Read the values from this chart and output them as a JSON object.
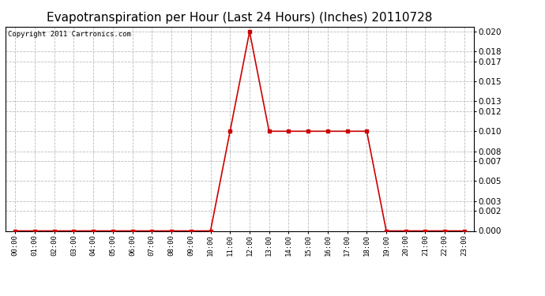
{
  "title": "Evapotranspiration per Hour (Last 24 Hours) (Inches) 20110728",
  "copyright": "Copyright 2011 Cartronics.com",
  "hours": [
    "00:00",
    "01:00",
    "02:00",
    "03:00",
    "04:00",
    "05:00",
    "06:00",
    "07:00",
    "08:00",
    "09:00",
    "10:00",
    "11:00",
    "12:00",
    "13:00",
    "14:00",
    "15:00",
    "16:00",
    "17:00",
    "18:00",
    "19:00",
    "20:00",
    "21:00",
    "22:00",
    "23:00"
  ],
  "values": [
    0.0,
    0.0,
    0.0,
    0.0,
    0.0,
    0.0,
    0.0,
    0.0,
    0.0,
    0.0,
    0.0,
    0.01,
    0.02,
    0.01,
    0.01,
    0.01,
    0.01,
    0.01,
    0.01,
    0.0,
    0.0,
    0.0,
    0.0,
    0.0
  ],
  "line_color": "#cc0000",
  "marker": "s",
  "marker_size": 3,
  "bg_color": "#ffffff",
  "grid_color": "#bbbbbb",
  "ylim": [
    0.0,
    0.0205
  ],
  "yticks": [
    0.0,
    0.002,
    0.003,
    0.005,
    0.007,
    0.008,
    0.01,
    0.012,
    0.013,
    0.015,
    0.017,
    0.018,
    0.02
  ],
  "title_fontsize": 11,
  "copyright_fontsize": 6.5
}
